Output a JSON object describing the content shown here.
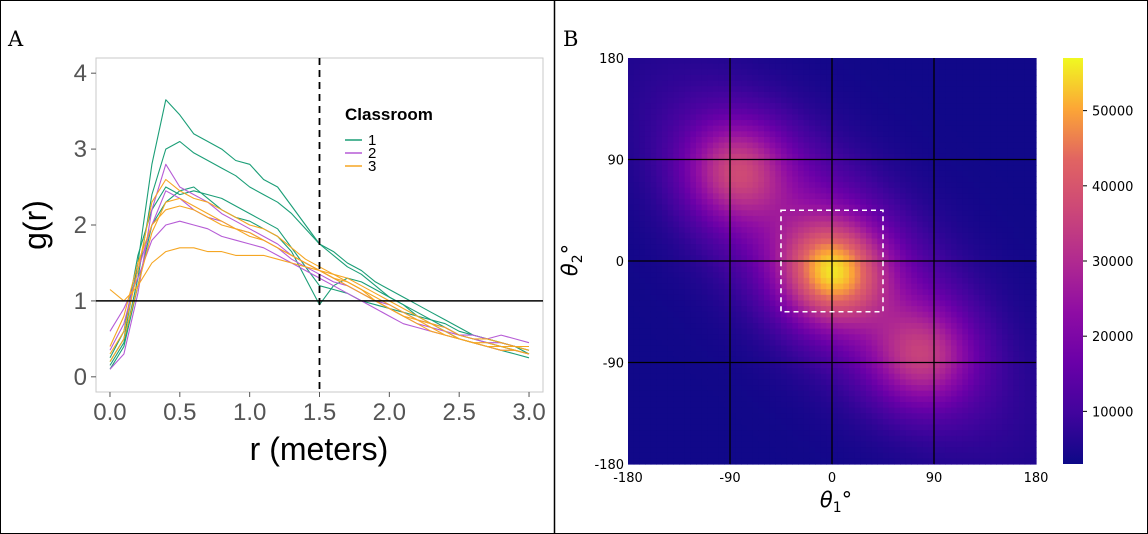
{
  "chart_data": [
    {
      "panel": "A",
      "type": "line",
      "xlabel": "r (meters)",
      "ylabel": "g(r)",
      "xlim": [
        -0.1,
        3.1
      ],
      "ylim": [
        -0.2,
        4.2
      ],
      "x_ticks": [
        "0.0",
        "0.5",
        "1.0",
        "1.5",
        "2.0",
        "2.5",
        "3.0"
      ],
      "y_ticks": [
        "0",
        "1",
        "2",
        "3",
        "4"
      ],
      "x_tick_values": [
        0,
        0.5,
        1.0,
        1.5,
        2.0,
        2.5,
        3.0
      ],
      "y_tick_values": [
        0,
        1,
        2,
        3,
        4
      ],
      "grid": false,
      "reference_lines": [
        {
          "orientation": "horizontal",
          "value": 1,
          "style": "solid"
        },
        {
          "orientation": "vertical",
          "value": 1.5,
          "style": "dashed"
        }
      ],
      "legend": {
        "title": "Classroom",
        "position": "top-right"
      },
      "x": [
        0.0,
        0.1,
        0.2,
        0.3,
        0.4,
        0.5,
        0.6,
        0.7,
        0.8,
        0.9,
        1.0,
        1.1,
        1.2,
        1.3,
        1.4,
        1.5,
        1.6,
        1.7,
        1.8,
        1.9,
        2.0,
        2.1,
        2.2,
        2.3,
        2.4,
        2.5,
        2.6,
        2.7,
        2.8,
        2.9,
        3.0
      ],
      "series": [
        {
          "name": "1",
          "color": "#1b9e77",
          "values": [
            0.2,
            0.5,
            1.5,
            2.8,
            3.65,
            3.45,
            3.2,
            3.1,
            3.0,
            2.85,
            2.8,
            2.6,
            2.5,
            2.25,
            2.0,
            1.75,
            1.6,
            1.45,
            1.35,
            1.2,
            1.05,
            0.95,
            0.8,
            0.7,
            0.6,
            0.5,
            0.45,
            0.4,
            0.35,
            0.3,
            0.25
          ]
        },
        {
          "name": "1",
          "color": "#1b9e77",
          "values": [
            0.15,
            0.45,
            1.3,
            2.4,
            3.0,
            3.1,
            2.95,
            2.85,
            2.75,
            2.65,
            2.5,
            2.4,
            2.3,
            2.15,
            1.95,
            1.75,
            1.65,
            1.5,
            1.4,
            1.25,
            1.15,
            1.05,
            0.95,
            0.85,
            0.75,
            0.65,
            0.55,
            0.5,
            0.45,
            0.4,
            0.35
          ]
        },
        {
          "name": "1",
          "color": "#1b9e77",
          "values": [
            0.25,
            0.6,
            1.6,
            2.2,
            2.5,
            2.4,
            2.45,
            2.4,
            2.35,
            2.25,
            2.15,
            2.05,
            1.95,
            1.7,
            1.45,
            1.2,
            1.15,
            1.1,
            1.0,
            0.95,
            0.9,
            0.85,
            0.8,
            0.75,
            0.65,
            0.55,
            0.5,
            0.45,
            0.4,
            0.35,
            0.3
          ]
        },
        {
          "name": "1",
          "color": "#1b9e77",
          "values": [
            0.1,
            0.4,
            1.2,
            2.0,
            2.3,
            2.45,
            2.5,
            2.35,
            2.2,
            2.1,
            2.05,
            1.95,
            1.85,
            1.65,
            1.3,
            0.95,
            1.2,
            1.3,
            1.25,
            1.15,
            1.05,
            0.95,
            0.85,
            0.75,
            0.7,
            0.6,
            0.55,
            0.5,
            0.45,
            0.4,
            0.3
          ]
        },
        {
          "name": "2",
          "color": "#b65cd6",
          "values": [
            0.1,
            0.3,
            1.1,
            2.2,
            2.8,
            2.5,
            2.4,
            2.3,
            2.15,
            2.05,
            1.95,
            1.85,
            1.75,
            1.6,
            1.5,
            1.4,
            1.3,
            1.2,
            1.1,
            1.0,
            0.9,
            0.8,
            0.7,
            0.65,
            0.6,
            0.55,
            0.5,
            0.45,
            0.45,
            0.4,
            0.4
          ]
        },
        {
          "name": "2",
          "color": "#b65cd6",
          "values": [
            0.35,
            0.7,
            1.4,
            2.0,
            2.45,
            2.35,
            2.2,
            2.1,
            2.05,
            1.95,
            1.9,
            1.8,
            1.7,
            1.55,
            1.45,
            1.35,
            1.25,
            1.2,
            1.1,
            1.0,
            0.95,
            0.85,
            0.75,
            0.7,
            0.65,
            0.55,
            0.55,
            0.5,
            0.55,
            0.5,
            0.45
          ]
        },
        {
          "name": "2",
          "color": "#b65cd6",
          "values": [
            0.6,
            0.9,
            1.3,
            1.8,
            2.0,
            2.05,
            2.0,
            1.95,
            1.85,
            1.8,
            1.75,
            1.7,
            1.6,
            1.5,
            1.4,
            1.3,
            1.2,
            1.1,
            1.0,
            0.9,
            0.8,
            0.7,
            0.65,
            0.6,
            0.55,
            0.5,
            0.45,
            0.4,
            0.35,
            0.35,
            0.3
          ]
        },
        {
          "name": "3",
          "color": "#f5a623",
          "values": [
            0.3,
            0.6,
            1.4,
            2.3,
            2.6,
            2.45,
            2.35,
            2.3,
            2.2,
            2.1,
            2.0,
            1.95,
            1.85,
            1.7,
            1.55,
            1.45,
            1.35,
            1.25,
            1.15,
            1.0,
            0.9,
            0.8,
            0.7,
            0.6,
            0.55,
            0.5,
            0.45,
            0.45,
            0.4,
            0.4,
            0.35
          ]
        },
        {
          "name": "3",
          "color": "#f5a623",
          "values": [
            1.15,
            1.0,
            1.2,
            1.5,
            1.65,
            1.7,
            1.7,
            1.65,
            1.65,
            1.6,
            1.6,
            1.6,
            1.55,
            1.5,
            1.45,
            1.4,
            1.35,
            1.3,
            1.2,
            1.1,
            1.0,
            0.9,
            0.8,
            0.7,
            0.6,
            0.5,
            0.45,
            0.4,
            0.35,
            0.35,
            0.3
          ]
        },
        {
          "name": "3",
          "color": "#f5a623",
          "values": [
            0.2,
            0.5,
            1.2,
            1.9,
            2.3,
            2.35,
            2.25,
            2.15,
            2.05,
            1.95,
            1.85,
            1.8,
            1.7,
            1.6,
            1.5,
            1.4,
            1.3,
            1.2,
            1.1,
            1.0,
            0.9,
            0.8,
            0.75,
            0.7,
            0.65,
            0.55,
            0.5,
            0.5,
            0.45,
            0.4,
            0.4
          ]
        },
        {
          "name": "3",
          "color": "#f5a623",
          "values": [
            0.4,
            0.8,
            1.5,
            2.0,
            2.2,
            2.25,
            2.2,
            2.1,
            2.0,
            1.95,
            1.9,
            1.8,
            1.7,
            1.6,
            1.5,
            1.4,
            1.3,
            1.25,
            1.15,
            1.05,
            0.95,
            0.85,
            0.75,
            0.65,
            0.55,
            0.5,
            0.45,
            0.4,
            0.4,
            0.35,
            0.3
          ]
        }
      ]
    },
    {
      "panel": "B",
      "type": "heatmap",
      "xlabel": "θ1°",
      "ylabel": "θ2°",
      "xlim": [
        -180,
        180
      ],
      "ylim": [
        -180,
        180
      ],
      "x_ticks": [
        "-180",
        "-90",
        "0",
        "90",
        "180"
      ],
      "y_ticks": [
        "-180",
        "-90",
        "0",
        "90",
        "180"
      ],
      "gridlines": [
        -90,
        0,
        90
      ],
      "colormap": "plasma",
      "colorbar": {
        "ticks": [
          "10000",
          "20000",
          "30000",
          "40000",
          "50000"
        ],
        "tick_values": [
          10000,
          20000,
          30000,
          40000,
          50000
        ],
        "range": [
          3000,
          57000
        ]
      },
      "highlight_box": {
        "x": [
          -45,
          45
        ],
        "y": [
          -45,
          45
        ],
        "style": "white dashed"
      },
      "peaks": [
        {
          "theta1": 0,
          "theta2": -10,
          "value": 55000
        },
        {
          "theta1": -85,
          "theta2": 80,
          "value": 44000
        },
        {
          "theta1": 80,
          "theta2": -85,
          "value": 42000
        }
      ]
    }
  ],
  "panels": {
    "a_label": "A",
    "b_label": "B"
  },
  "colors": {
    "panel_border": "#000000",
    "reference_line": "#000000",
    "classroom_1": "#1b9e77",
    "classroom_2": "#b65cd6",
    "classroom_3": "#f5a623",
    "box": "#ffffff"
  }
}
